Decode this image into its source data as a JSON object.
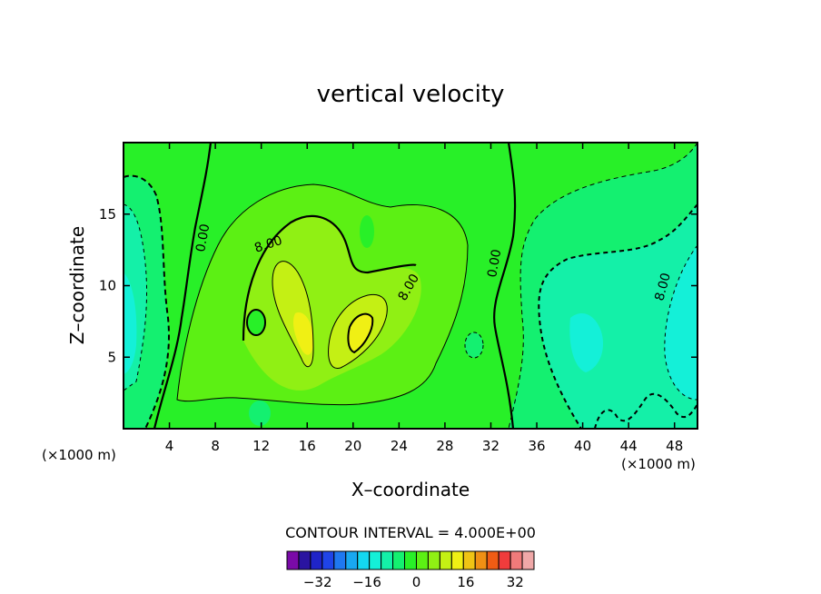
{
  "chart_data": {
    "type": "heatmap",
    "subtype": "filled-contour",
    "title": "vertical velocity",
    "xlabel": "X–coordinate",
    "ylabel": "Z–coordinate",
    "x_unit": "(×1000 m)",
    "y_unit": "(×1000 m)",
    "xlim": [
      0,
      50
    ],
    "ylim": [
      0,
      20
    ],
    "x_ticks": [
      4,
      8,
      12,
      16,
      20,
      24,
      28,
      32,
      36,
      40,
      44,
      48
    ],
    "y_ticks": [
      5,
      10,
      15
    ],
    "contour_interval_text": "CONTOUR INTERVAL = 4.000E+00",
    "contour_interval": 4,
    "contour_labels": [
      {
        "text": "0.00",
        "x": 6.6,
        "y": 13.3
      },
      {
        "text": "8.00",
        "x": 12.7,
        "y": 12.6
      },
      {
        "text": "8.00",
        "x": 24.5,
        "y": 10.0
      },
      {
        "text": "0.00",
        "x": 32.5,
        "y": 11.3
      },
      {
        "text": "8.00",
        "x": 46.8,
        "y": 10.0
      }
    ],
    "colorbar": {
      "levels": [
        -40,
        -36,
        -32,
        -28,
        -24,
        -20,
        -16,
        -12,
        -8,
        -4,
        0,
        4,
        8,
        12,
        16,
        20,
        24,
        28,
        32,
        36,
        40
      ],
      "tick_values": [
        -32,
        -16,
        0,
        16,
        32
      ],
      "tick_labels": [
        "−32",
        "−16",
        "0",
        "16",
        "32"
      ],
      "colors": [
        "#7a0aa8",
        "#2a14a0",
        "#1f24c8",
        "#1f44e8",
        "#1f78f0",
        "#19a8f0",
        "#14d8f0",
        "#14f0d8",
        "#14f0a8",
        "#14f070",
        "#28f028",
        "#5cf014",
        "#90f014",
        "#c4f014",
        "#f0f014",
        "#f0c414",
        "#f09014",
        "#f05c14",
        "#f03c3c",
        "#f07a7a",
        "#f0a8a8"
      ]
    },
    "field_peaks": [
      {
        "x": 16.5,
        "y": 7.0,
        "value": 14
      },
      {
        "x": 20.5,
        "y": 6.0,
        "value": 14
      },
      {
        "x": 17.5,
        "y": 11.5,
        "value": 8
      },
      {
        "x": 1.0,
        "y": 7.0,
        "value": -14
      },
      {
        "x": 48.5,
        "y": 7.0,
        "value": -14
      },
      {
        "x": 40.5,
        "y": 6.0,
        "value": -12
      }
    ]
  }
}
